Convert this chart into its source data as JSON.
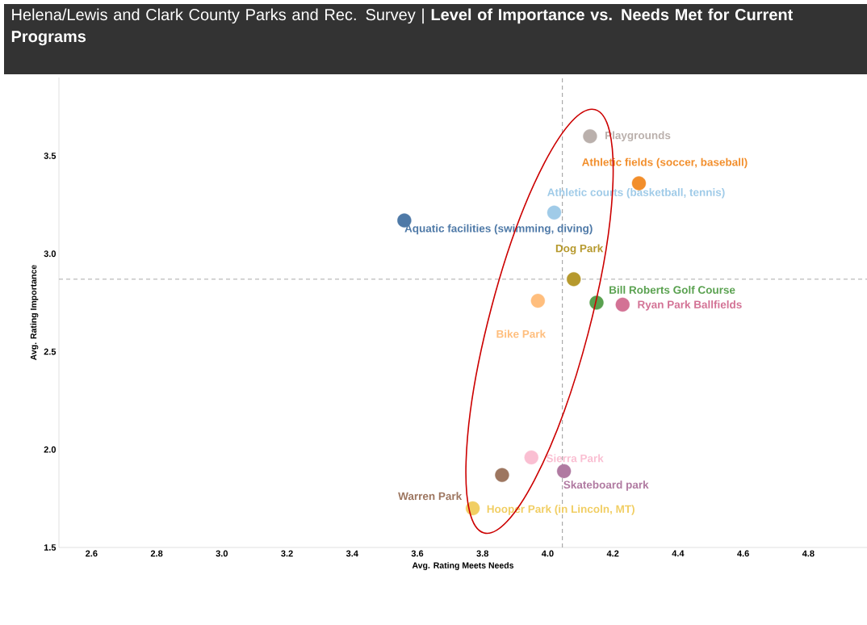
{
  "chart_data": {
    "type": "scatter",
    "title": "Helena/Lewis and Clark County Parks and Rec. Survey  |  **Level of Importance vs. Needs Met for Current Programs**",
    "xlabel": "Avg. Rating Meets Needs",
    "ylabel": "Avg. Rating Importance",
    "xlim": [
      2.5,
      4.98
    ],
    "ylim": [
      1.5,
      3.9
    ],
    "xticks": [
      2.6,
      2.8,
      {
        "value": 3,
        "label": "3.0"
      },
      3.2,
      3.4,
      3.6,
      3.8,
      {
        "value": 4,
        "label": "4.0"
      },
      4.2,
      4.4,
      4.6,
      4.8
    ],
    "yticks": [
      1.5,
      {
        "value": 2,
        "label": "2.0"
      },
      2.5,
      {
        "value": 3,
        "label": "3.0"
      },
      3.5
    ],
    "marker": "circle",
    "ref_lines": [
      {
        "axis": "x",
        "value": 4.045,
        "color": "#aaaaaa",
        "line_style": "dashed"
      },
      {
        "axis": "y",
        "value": 2.87,
        "color": "#aaaaaa",
        "line_style": "dashed"
      }
    ],
    "series": [
      {
        "name": "Playgrounds",
        "color": "#bab0ac",
        "x": [
          4.13
        ],
        "values": [
          3.6
        ]
      },
      {
        "name": "Athletic fields (soccer, baseball)",
        "color": "#f28e2b",
        "x": [
          4.28
        ],
        "values": [
          3.36
        ]
      },
      {
        "name": "Athletic courts (basketball, tennis)",
        "color": "#a0cbe8",
        "x": [
          4.02
        ],
        "values": [
          3.21
        ]
      },
      {
        "name": "Aquatic facilities (swimming, diving)",
        "color": "#4e79a7",
        "x": [
          3.56
        ],
        "values": [
          3.17
        ]
      },
      {
        "name": "Dog Park",
        "color": "#b6992d",
        "x": [
          4.08
        ],
        "values": [
          2.87
        ]
      },
      {
        "name": "Bill Roberts Golf Course",
        "color": "#59a14f",
        "x": [
          4.15
        ],
        "values": [
          2.75
        ]
      },
      {
        "name": "Ryan Park Ballfields",
        "color": "#d37295",
        "x": [
          4.23
        ],
        "values": [
          2.74
        ]
      },
      {
        "name": "Bike Park",
        "color": "#ffbe7d",
        "x": [
          3.97
        ],
        "values": [
          2.76
        ]
      },
      {
        "name": "Sierra Park",
        "color": "#fabfd2",
        "x": [
          3.95
        ],
        "values": [
          1.96
        ]
      },
      {
        "name": "Skateboard park",
        "color": "#b07aa1",
        "x": [
          4.05
        ],
        "values": [
          1.89
        ]
      },
      {
        "name": "Warren Park",
        "color": "#9d7660",
        "x": [
          3.86
        ],
        "values": [
          1.87
        ]
      },
      {
        "name": "Hooper Park (in Lincoln, MT)",
        "color": "#f1ce63",
        "x": [
          3.77
        ],
        "values": [
          1.7
        ]
      }
    ]
  }
}
